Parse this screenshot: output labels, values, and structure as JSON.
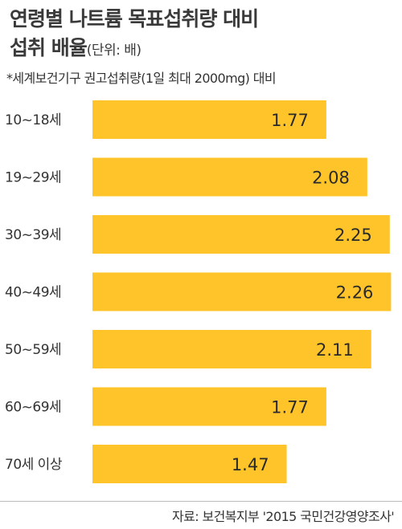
{
  "title_line1": "연령별 나트륨 목표섭취량 대비",
  "title_line2": "섭취 배율",
  "unit": "(단위: 배)",
  "note": "*세계보건기구 권고섭취량(1일 최대 2000mg) 대비",
  "source": "자료: 보건복지부 '2015 국민건강영양조사'",
  "colors": {
    "bar": "#FFC429",
    "background": "#FFFFFF"
  },
  "chart_data": {
    "type": "bar",
    "orientation": "horizontal",
    "categories": [
      "10~18세",
      "19~29세",
      "30~39세",
      "40~49세",
      "50~59세",
      "60~69세",
      "70세 이상"
    ],
    "values": [
      1.77,
      2.08,
      2.25,
      2.26,
      2.11,
      1.77,
      1.47
    ],
    "value_labels": [
      "1.77",
      "2.08",
      "2.25",
      "2.26",
      "2.11",
      "1.77",
      "1.47"
    ],
    "title": "연령별 나트륨 목표섭취량 대비 섭취 배율",
    "xlabel": "",
    "ylabel": "",
    "grid": false,
    "xlim": [
      0,
      2.3
    ]
  }
}
